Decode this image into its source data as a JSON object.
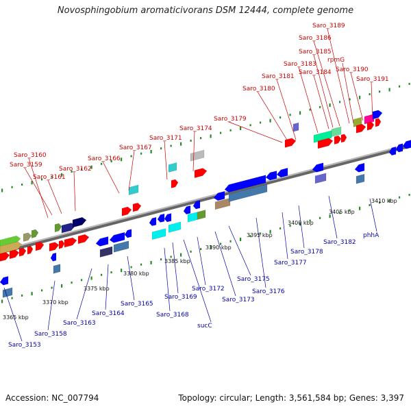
{
  "title": "Novosphingobium aromaticivorans DSM 12444, complete genome",
  "footer": {
    "accession": "Accession: NC_007794",
    "topology": "Topology: circular; Length: 3,561,584 bp; Genes: 3,397"
  },
  "kbp_labels": [
    "3365 kbp",
    "3370 kbp",
    "3375 kbp",
    "3380 kbp",
    "3385 kbp",
    "3390 kbp",
    "3395 kbp",
    "3400 kbp",
    "3405 kbp",
    "3410 kbp"
  ],
  "labels_top": [
    "Saro_3160",
    "Saro_3159",
    "Saro_3161",
    "Saro_3162",
    "Saro_3166",
    "Saro_3167",
    "Saro_3171",
    "Saro_3174",
    "Saro_3179",
    "Saro_3180",
    "Saro_3181",
    "Saro_3183",
    "Saro_3184",
    "Saro_3185",
    "Saro_3186",
    "Saro_3189",
    "rpmG",
    "Saro_3190",
    "Saro_3191"
  ],
  "labels_bottom": [
    "Saro_3153",
    "Saro_3158",
    "Saro_3163",
    "Saro_3164",
    "Saro_3165",
    "Saro_3168",
    "Saro_3169",
    "sucC",
    "Saro_3172",
    "Saro_3173",
    "Saro_3175",
    "Saro_3176",
    "Saro_3177",
    "Saro_3178",
    "Saro_3182",
    "phhA"
  ],
  "colors": {
    "forward": "#ff0000",
    "reverse": "#0000ff",
    "axis": "#888888",
    "tick": "#228822"
  }
}
